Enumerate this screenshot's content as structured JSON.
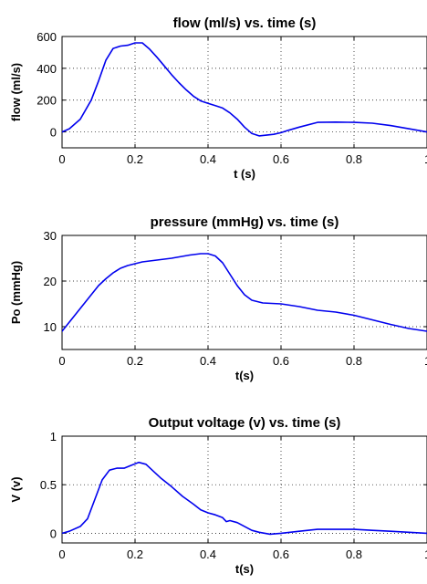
{
  "colors": {
    "series": "#0000ee"
  },
  "chart_data": [
    {
      "type": "line",
      "title": "flow (ml/s) vs. time (s)",
      "xlabel": "t (s)",
      "ylabel": "flow (ml/s)",
      "xlim": [
        0,
        1
      ],
      "ylim": [
        -100,
        600
      ],
      "xticks": [
        "0",
        "0.2",
        "0.4",
        "0.6",
        "0.8",
        "1"
      ],
      "yticks": [
        "0",
        "200",
        "400",
        "600"
      ],
      "grid": true,
      "series": [
        {
          "x": [
            0,
            0.02,
            0.05,
            0.08,
            0.1,
            0.12,
            0.14,
            0.16,
            0.18,
            0.2,
            0.22,
            0.24,
            0.26,
            0.28,
            0.3,
            0.32,
            0.34,
            0.36,
            0.38,
            0.4,
            0.42,
            0.44,
            0.46,
            0.48,
            0.5,
            0.52,
            0.54,
            0.56,
            0.58,
            0.6,
            0.62,
            0.65,
            0.7,
            0.75,
            0.8,
            0.85,
            0.9,
            0.95,
            1.0
          ],
          "values": [
            0,
            20,
            80,
            200,
            320,
            450,
            525,
            540,
            545,
            560,
            560,
            520,
            470,
            415,
            360,
            310,
            265,
            225,
            195,
            180,
            165,
            150,
            120,
            80,
            30,
            -10,
            -25,
            -20,
            -15,
            -5,
            10,
            30,
            60,
            62,
            60,
            55,
            40,
            20,
            0
          ]
        }
      ]
    },
    {
      "type": "line",
      "title": "pressure (mmHg) vs. time (s)",
      "xlabel": "t(s)",
      "ylabel": "Po (mmHg)",
      "xlim": [
        0,
        1
      ],
      "ylim": [
        5,
        30
      ],
      "xticks": [
        "0",
        "0.2",
        "0.4",
        "0.6",
        "0.8",
        "1"
      ],
      "yticks": [
        "10",
        "20",
        "30"
      ],
      "grid": true,
      "series": [
        {
          "x": [
            0,
            0.02,
            0.04,
            0.06,
            0.08,
            0.1,
            0.12,
            0.14,
            0.16,
            0.18,
            0.2,
            0.22,
            0.25,
            0.3,
            0.35,
            0.38,
            0.4,
            0.42,
            0.44,
            0.46,
            0.48,
            0.5,
            0.52,
            0.55,
            0.6,
            0.65,
            0.7,
            0.75,
            0.8,
            0.85,
            0.9,
            0.95,
            1.0
          ],
          "values": [
            9,
            11,
            13,
            15,
            17,
            19,
            20.5,
            21.8,
            22.8,
            23.4,
            23.8,
            24.2,
            24.5,
            25.0,
            25.7,
            26.0,
            26.0,
            25.5,
            24.0,
            21.5,
            19.0,
            17.0,
            15.8,
            15.2,
            15.0,
            14.4,
            13.6,
            13.2,
            12.5,
            11.5,
            10.5,
            9.6,
            9.0
          ]
        }
      ]
    },
    {
      "type": "line",
      "title": "Output voltage (v) vs. time (s)",
      "xlabel": "t(s)",
      "ylabel": "V (v)",
      "xlim": [
        0,
        1
      ],
      "ylim": [
        -0.1,
        1
      ],
      "xticks": [
        "0",
        "0.2",
        "0.4",
        "0.6",
        "0.8",
        "1"
      ],
      "yticks": [
        "0",
        "0.5",
        "1"
      ],
      "grid": true,
      "series": [
        {
          "x": [
            0,
            0.02,
            0.05,
            0.07,
            0.09,
            0.11,
            0.13,
            0.15,
            0.17,
            0.19,
            0.21,
            0.23,
            0.25,
            0.27,
            0.3,
            0.33,
            0.36,
            0.38,
            0.4,
            0.42,
            0.44,
            0.45,
            0.46,
            0.48,
            0.5,
            0.52,
            0.54,
            0.57,
            0.6,
            0.65,
            0.7,
            0.75,
            0.8,
            0.85,
            0.9,
            0.95,
            1.0
          ],
          "values": [
            0,
            0.02,
            0.07,
            0.15,
            0.35,
            0.55,
            0.65,
            0.67,
            0.67,
            0.7,
            0.73,
            0.71,
            0.64,
            0.57,
            0.48,
            0.38,
            0.3,
            0.24,
            0.21,
            0.19,
            0.16,
            0.12,
            0.13,
            0.11,
            0.07,
            0.03,
            0.01,
            -0.01,
            0.0,
            0.02,
            0.04,
            0.04,
            0.04,
            0.03,
            0.02,
            0.01,
            0.0
          ]
        }
      ]
    }
  ]
}
